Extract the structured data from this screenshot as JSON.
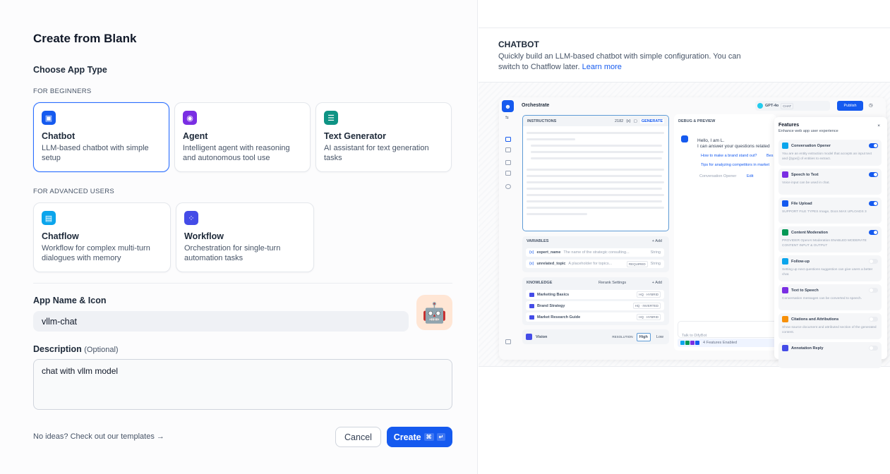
{
  "dialog": {
    "title": "Create from Blank",
    "choose_label": "Choose App Type",
    "beginners_label": "FOR BEGINNERS",
    "advanced_label": "FOR ADVANCED USERS",
    "app_types": [
      {
        "name": "Chatbot",
        "desc": "LLM-based chatbot with simple setup",
        "color": "#155aef",
        "icon": "chatbot-icon",
        "selected": true
      },
      {
        "name": "Agent",
        "desc": "Intelligent agent with reasoning and autonomous tool use",
        "color": "#7a2ee3",
        "icon": "agent-icon"
      },
      {
        "name": "Text Generator",
        "desc": "AI assistant for text generation tasks",
        "color": "#0e9384",
        "icon": "text-generator-icon"
      },
      {
        "name": "Chatflow",
        "desc": "Workflow for complex multi-turn dialogues with memory",
        "color": "#0ba5ec",
        "icon": "chatflow-icon"
      },
      {
        "name": "Workflow",
        "desc": "Orchestration for single-turn automation tasks",
        "color": "#444ce7",
        "icon": "workflow-icon"
      }
    ],
    "name_label": "App Name & Icon",
    "name_value": "vllm-chat",
    "app_icon": "🤖",
    "desc_label": "Description",
    "desc_optional": "(Optional)",
    "desc_value": "chat with vllm model",
    "templates_link": "No ideas? Check out our templates →",
    "cancel": "Cancel",
    "create": "Create",
    "create_shortcut": [
      "⌘",
      "↵"
    ]
  },
  "preview": {
    "title": "CHATBOT",
    "desc": "Quickly build an LLM-based chatbot with simple configuration. You can switch to Chatflow later.",
    "learn_more": "Learn more",
    "mock": {
      "header": "Orchestrate",
      "model": "GPT-4o",
      "model_tag": "CHAT",
      "publish": "Publish",
      "instructions": "INSTRUCTIONS",
      "instr_count": "2182",
      "generate": "GENERATE",
      "variables": "VARIABLES",
      "add": "+ Add",
      "vars": [
        {
          "name": "expert_name",
          "desc": "The name of the strategic consulting...",
          "tag": "",
          "type": "String"
        },
        {
          "name": "unrelated_topic",
          "desc": "A placeholder for topics...",
          "tag": "REQUIRED",
          "type": "String"
        }
      ],
      "knowledge": "KNOWLEDGE",
      "rerank": "Rerank Settings",
      "kbs": [
        {
          "name": "Marketing Basics",
          "tag": "HQ · HYBRID"
        },
        {
          "name": "Brand Strategy",
          "tag": "HQ · INVERTED"
        },
        {
          "name": "Market Research Guide",
          "tag": "HQ · HYBRID"
        }
      ],
      "vision": "Vision",
      "resolution": "RESOLUTION",
      "high": "High",
      "low": "Low",
      "debug": "DEBUG & PREVIEW",
      "greeting1": "Hello, I am L.",
      "greeting2": "I can answer your questions related",
      "sugg1": "How to make a brand stand out?",
      "sugg1b": "Bes",
      "sugg2": "Tips for analyzing competitors in market",
      "opener": "Conversation Opener",
      "edit": "Edit",
      "chat_placeholder": "Talk to DifyBot",
      "features_enabled": "4 Features Enabled",
      "features_title": "Features",
      "features_sub": "Enhance web app user experience",
      "features": [
        {
          "name": "Conversation Opener",
          "desc": "You are an entity extraction model that accepts an input text and {{type}} of entities to extract.",
          "on": true,
          "color": "#0ba5ec"
        },
        {
          "name": "Speech to Text",
          "desc": "Voice input can be used in chat.",
          "on": true,
          "color": "#7a2ee3"
        },
        {
          "name": "File Upload",
          "desc": "SUPPORT FILE TYPES  Image, Docs   MAX UPLOADS  3",
          "on": true,
          "color": "#155aef"
        },
        {
          "name": "Content Moderation",
          "desc": "PROVIDER  OpenAI Moderation   ENABLED MODERATE CONTENT  INPUT & OUTPUT",
          "on": true,
          "color": "#039855"
        },
        {
          "name": "Follow-up",
          "desc": "Setting up next questions suggestion can give users a better chat.",
          "on": false,
          "color": "#0ba5ec"
        },
        {
          "name": "Text to Speech",
          "desc": "Conversation messages can be converted to speech.",
          "on": false,
          "color": "#7a2ee3"
        },
        {
          "name": "Citations and Attributions",
          "desc": "Show source document and attributed section of the generated content.",
          "on": false,
          "color": "#f79009"
        },
        {
          "name": "Annotation Reply",
          "desc": "",
          "on": false,
          "color": "#444ce7"
        }
      ]
    }
  }
}
